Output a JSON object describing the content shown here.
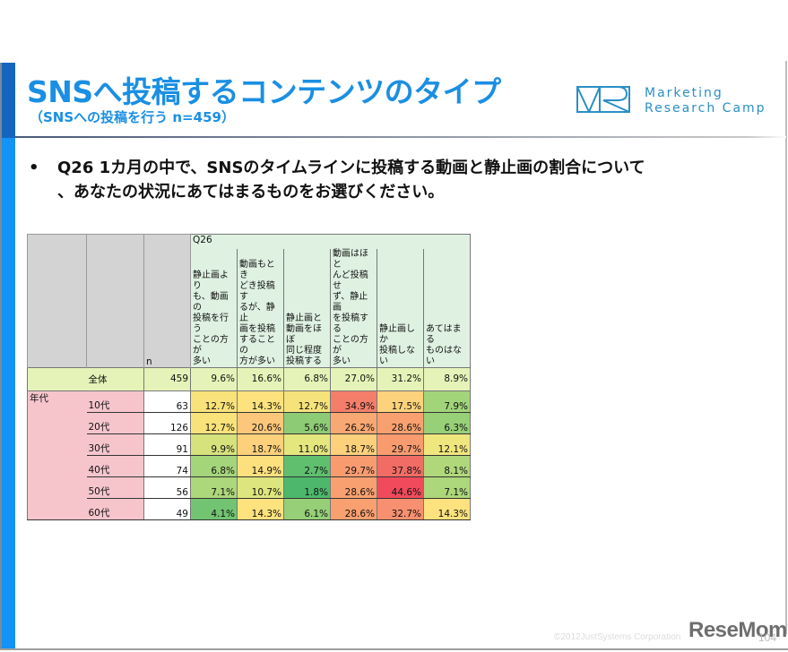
{
  "slide": {
    "title": "SNSへ投稿するコンテンツのタイプ",
    "subtitle": "（SNSへの投稿を行う n=459）",
    "logo": {
      "line1": "Marketing",
      "line2": "Research Camp",
      "color": "#2a8fc4"
    },
    "question": {
      "bullet": "•",
      "line1": "Q26 1カ月の中で、SNSのタイムラインに投稿する動画と静止画の割合について",
      "line2": "、あなたの状況にあてはまるものをお選びください。"
    },
    "footer": {
      "copyright": "©2012JustSystems Corporation",
      "brand": "ReseMom",
      "page": "104"
    },
    "accent_color": "#1a8fe3"
  },
  "table": {
    "group_label": "Q26",
    "n_label": "n",
    "columns": [
      "静止画よりも、動画の投稿を行うことの方が多い",
      "動画もときどき投稿するが、静止画を投稿することの方が多い",
      "静止画と動画をほぼ同じ程度投稿する",
      "動画はほとんど投稿せず、静止画を投稿することの方が多い",
      "静止画しか投稿しない",
      "あてはまるものはない"
    ],
    "column_lines": [
      [
        "静止画より",
        "も、動画の",
        "投稿を行う",
        "ことの方が",
        "多い"
      ],
      [
        "動画もとき",
        "どき投稿す",
        "るが、静止",
        "画を投稿",
        "することの",
        "方が多い"
      ],
      [
        "静止画と",
        "動画をほぼ",
        "同じ程度",
        "投稿する"
      ],
      [
        "動画はほと",
        "んど投稿せ",
        "ず、静止画",
        "を投稿する",
        "ことの方が",
        "多い"
      ],
      [
        "静止画しか",
        "投稿しない"
      ],
      [
        "あてはまる",
        "ものはない"
      ]
    ],
    "total": {
      "label": "全体",
      "n": "459",
      "values": [
        "9.6%",
        "16.6%",
        "6.8%",
        "27.0%",
        "31.2%",
        "8.9%"
      ],
      "colors": [
        "#e6f3b8",
        "#e6f3b8",
        "#e6f3b8",
        "#e6f3b8",
        "#e6f3b8",
        "#e6f3b8"
      ]
    },
    "segment_label": "年代",
    "rows": [
      {
        "label": "10代",
        "n": "63",
        "values": [
          "12.7%",
          "14.3%",
          "12.7%",
          "34.9%",
          "17.5%",
          "7.9%"
        ],
        "colors": [
          "#f9e27a",
          "#fde27e",
          "#f6e27a",
          "#f47e6a",
          "#fdd27c",
          "#a2d47a"
        ]
      },
      {
        "label": "20代",
        "n": "126",
        "values": [
          "12.7%",
          "20.6%",
          "5.6%",
          "26.2%",
          "28.6%",
          "6.3%"
        ],
        "colors": [
          "#f9e27a",
          "#fcc77b",
          "#8ecb75",
          "#f8a872",
          "#f9a070",
          "#98d078"
        ]
      },
      {
        "label": "30代",
        "n": "91",
        "values": [
          "9.9%",
          "18.7%",
          "11.0%",
          "18.7%",
          "29.7%",
          "12.1%"
        ],
        "colors": [
          "#d6e27c",
          "#fdd07c",
          "#e4e67e",
          "#fdd07c",
          "#f89c70",
          "#f0e67e"
        ]
      },
      {
        "label": "40代",
        "n": "74",
        "values": [
          "6.8%",
          "14.9%",
          "2.7%",
          "29.7%",
          "37.8%",
          "8.1%"
        ],
        "colors": [
          "#a5d57a",
          "#fde07e",
          "#5fbf6f",
          "#f89c70",
          "#f26c66",
          "#b0d87b"
        ]
      },
      {
        "label": "50代",
        "n": "56",
        "values": [
          "7.1%",
          "10.7%",
          "1.8%",
          "28.6%",
          "44.6%",
          "7.1%"
        ],
        "colors": [
          "#acd77a",
          "#dde57e",
          "#4db86c",
          "#f9a070",
          "#f04a5c",
          "#acd77a"
        ]
      },
      {
        "label": "60代",
        "n": "49",
        "values": [
          "4.1%",
          "14.3%",
          "6.1%",
          "28.6%",
          "32.7%",
          "14.3%"
        ],
        "colors": [
          "#72c472",
          "#fde27e",
          "#96cf77",
          "#f9a070",
          "#f69070",
          "#fde27e"
        ]
      }
    ]
  }
}
